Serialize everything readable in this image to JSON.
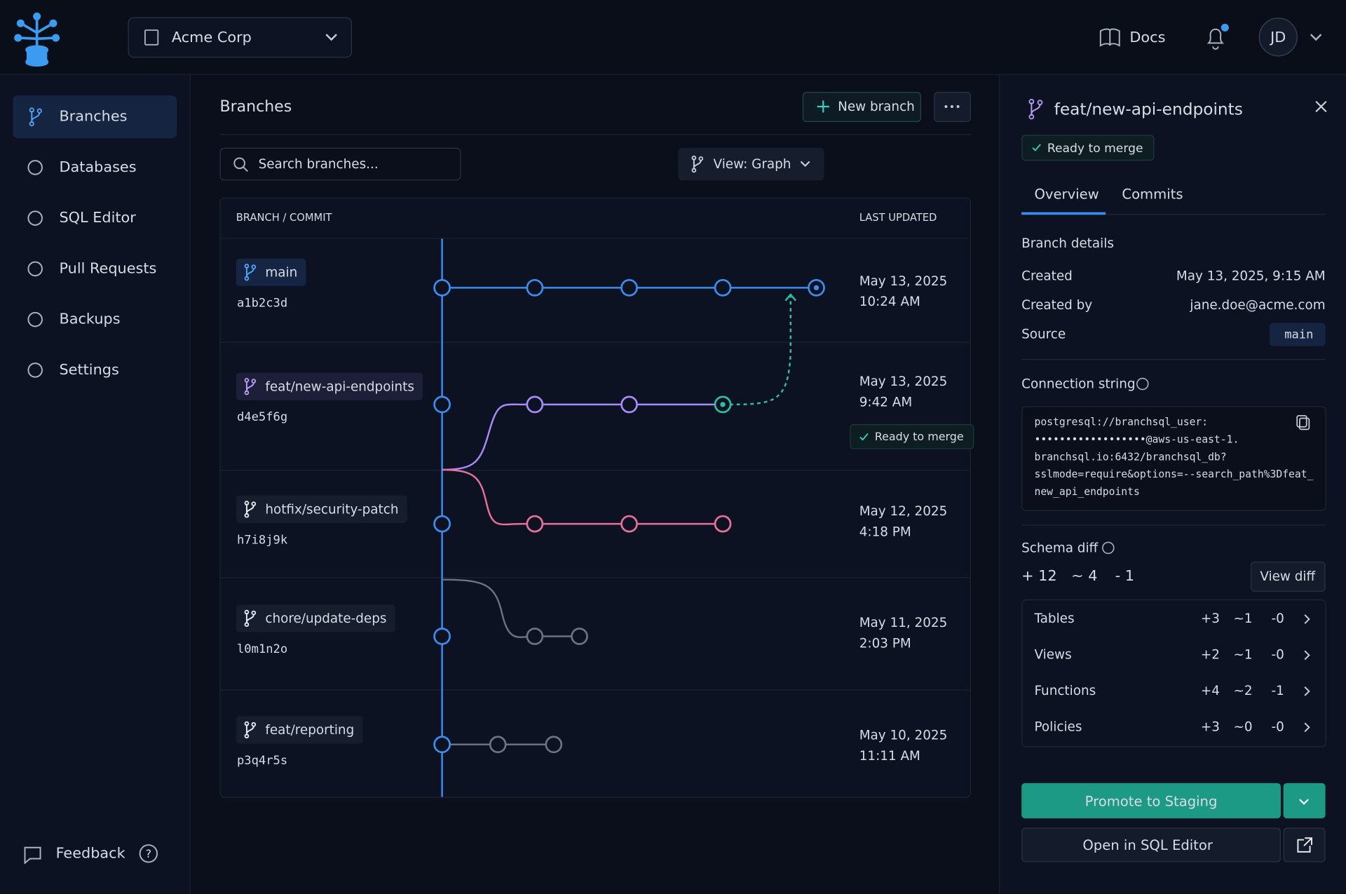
{
  "header": {
    "org": "Acme Corp",
    "docs": "Docs",
    "avatar": "JD"
  },
  "sidebar": {
    "items": [
      "Branches",
      "Databases",
      "SQL Editor",
      "Pull Requests",
      "Backups",
      "Settings"
    ],
    "feedback": "Feedback"
  },
  "main": {
    "title": "Branches",
    "new_branch": "New branch",
    "search_placeholder": "Search branches...",
    "view": "View: Graph",
    "columns": [
      "BRANCH / COMMIT",
      "LAST UPDATED"
    ],
    "branches": [
      {
        "name": "main",
        "commit": "a1b2c3d",
        "date": "May 13, 2025",
        "time": "10:24 AM"
      },
      {
        "name": "feat/new-api-endpoints",
        "commit": "d4e5f6g",
        "date": "May 13, 2025",
        "time": "9:42 AM",
        "badge": "Ready to merge"
      },
      {
        "name": "hotfix/security-patch",
        "commit": "h7i8j9k",
        "date": "May 12, 2025",
        "time": "4:18 PM"
      },
      {
        "name": "chore/update-deps",
        "commit": "l0m1n2o",
        "date": "May 11, 2025",
        "time": "2:03 PM"
      },
      {
        "name": "feat/reporting",
        "commit": "p3q4r5s",
        "date": "May 10, 2025",
        "time": "11:11 AM"
      }
    ]
  },
  "panel": {
    "title": "feat/new-api-endpoints",
    "status": "Ready to merge",
    "tabs": [
      "Overview",
      "Commits"
    ],
    "details_title": "Branch details",
    "details": [
      {
        "label": "Created",
        "value": "May 13, 2025, 9:15 AM"
      },
      {
        "label": "Created by",
        "value": "jane.doe@acme.com"
      },
      {
        "label": "Source",
        "value": "main"
      }
    ],
    "connection_title": "Connection string",
    "connection_lines": [
      "postgresql://branchsql_user:",
      "••••••••••••••••••@aws-us-east-1.",
      "branchsql.io:6432/branchsql_db?",
      "sslmode=require&options=--search_path%3Dfeat_",
      "new_api_endpoints"
    ],
    "schema_title": "Schema diff",
    "schema_summary": {
      "added": "+ 12",
      "modified": "~ 4",
      "removed": "- 1"
    },
    "view_diff": "View diff",
    "schema_rows": [
      {
        "name": "Tables",
        "added": "+3",
        "modified": "~1",
        "removed": "-0"
      },
      {
        "name": "Views",
        "added": "+2",
        "modified": "~1",
        "removed": "-0"
      },
      {
        "name": "Functions",
        "added": "+4",
        "modified": "~2",
        "removed": "-1"
      },
      {
        "name": "Policies",
        "added": "+3",
        "modified": "~0",
        "removed": "-0"
      }
    ],
    "promote": "Promote to Staging",
    "open_sql": "Open in SQL Editor"
  }
}
